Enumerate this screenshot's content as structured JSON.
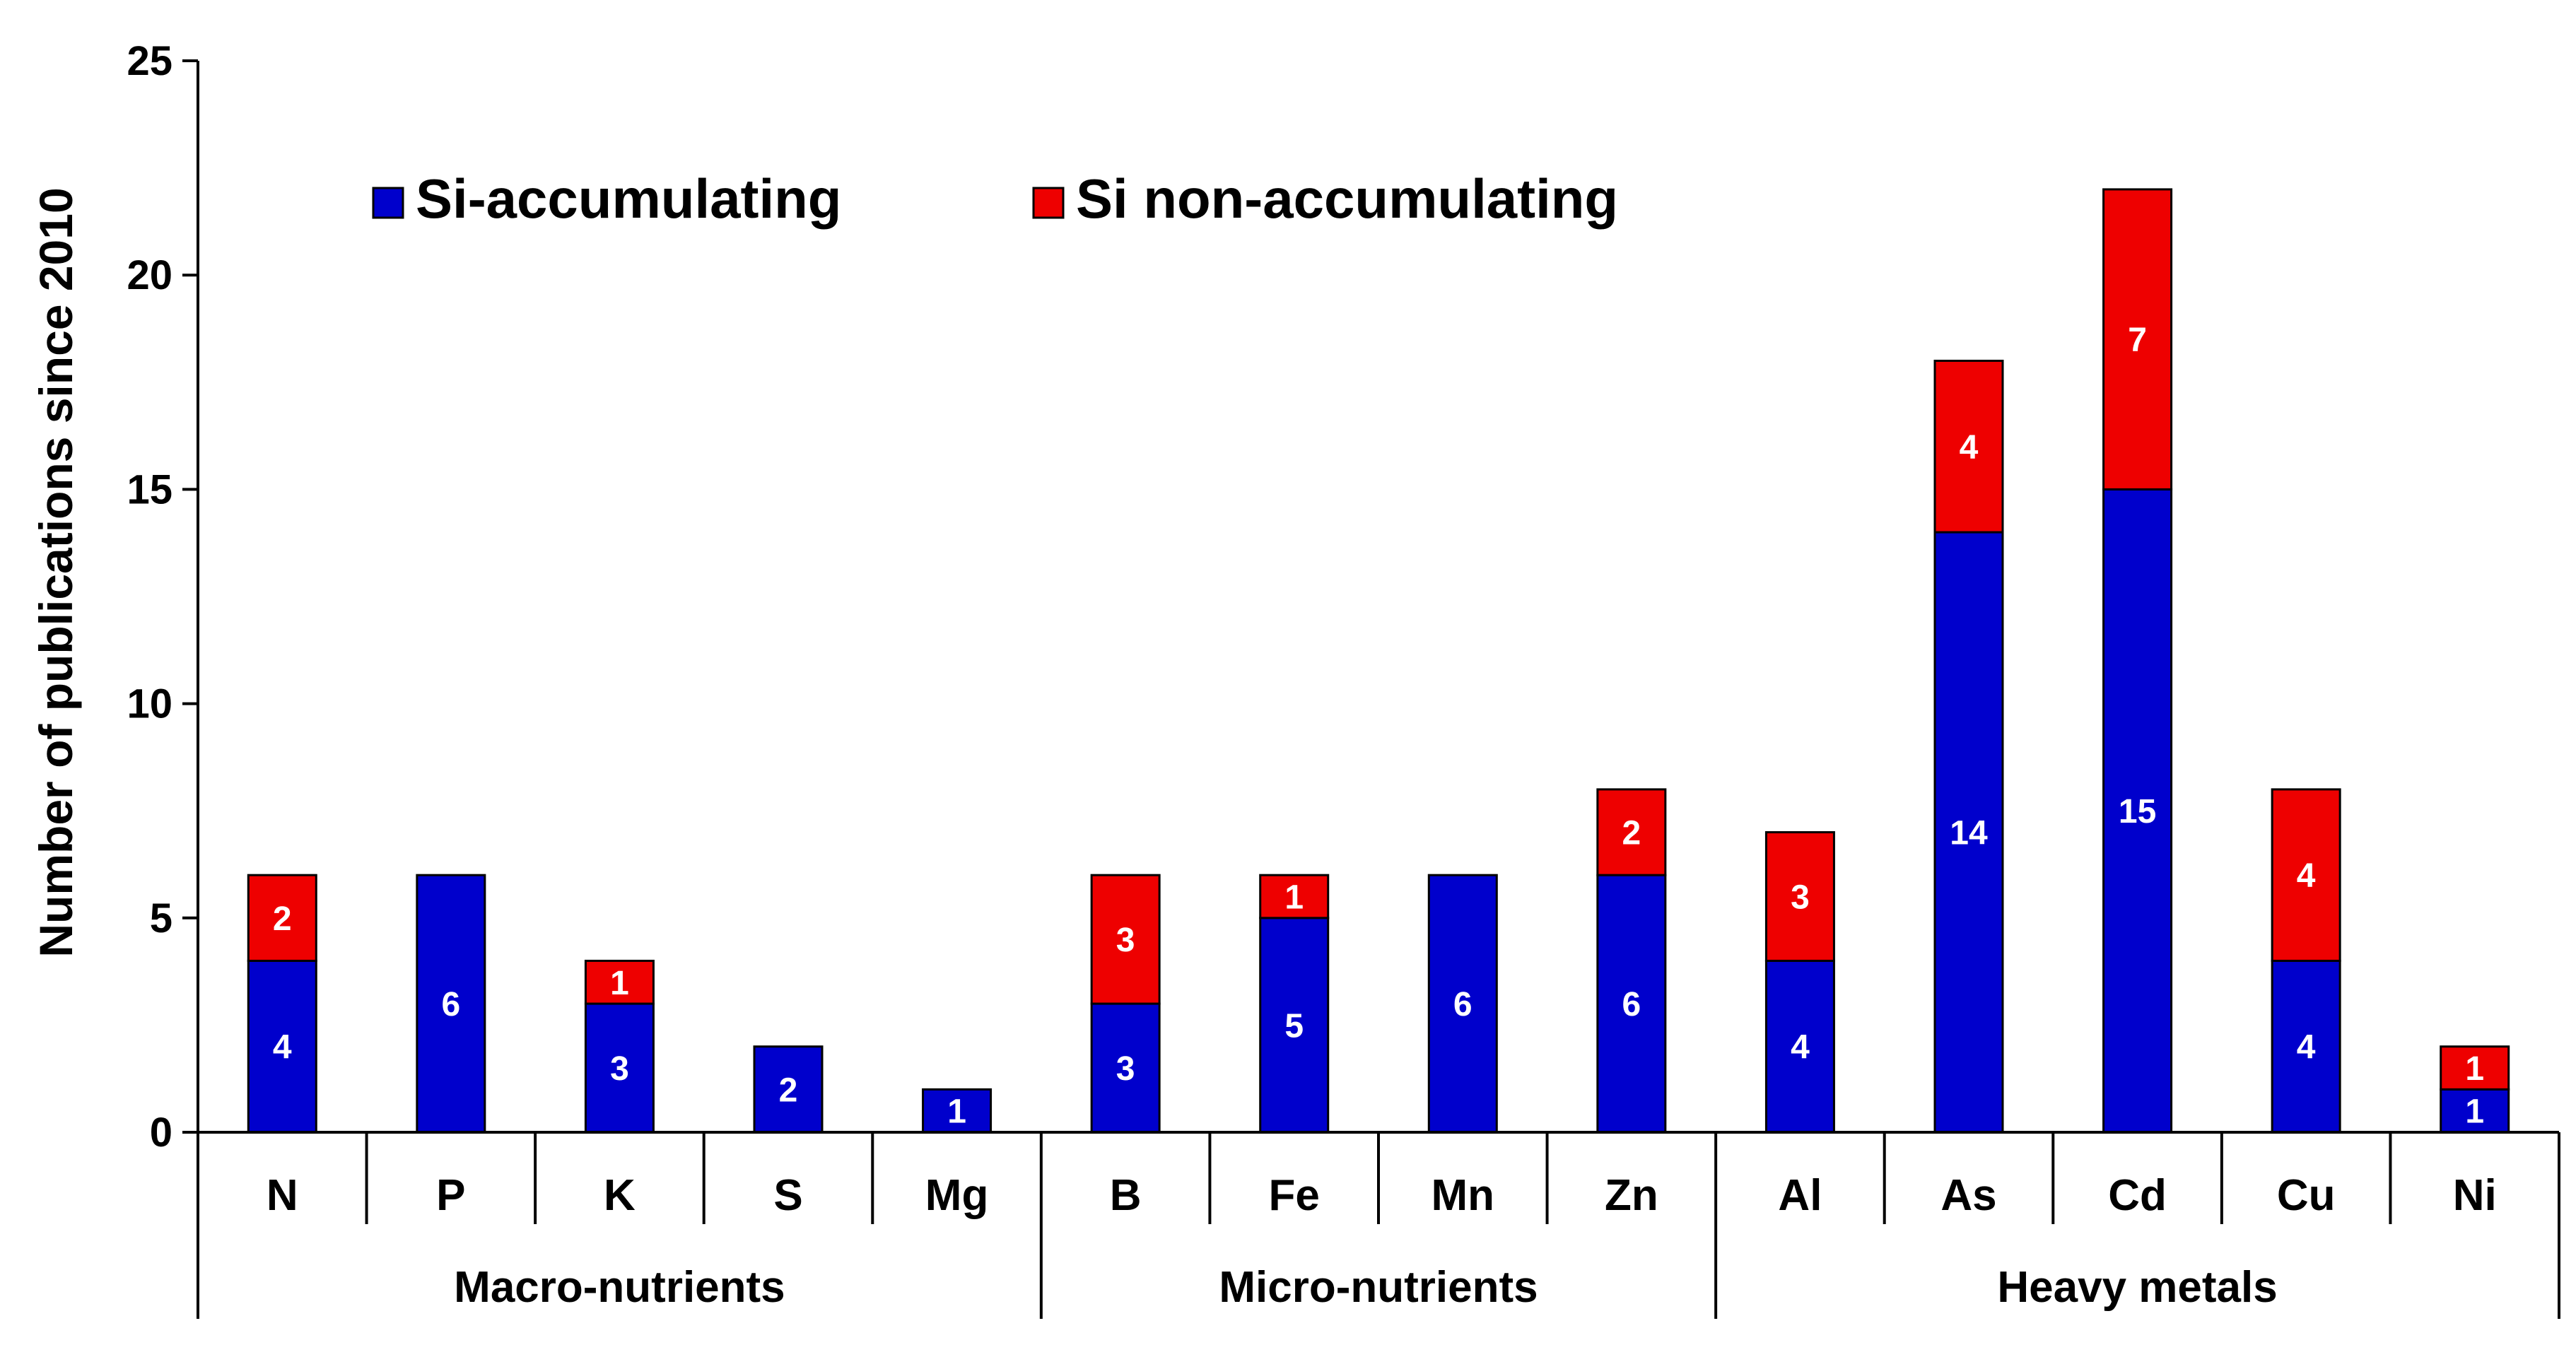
{
  "chart_data": {
    "type": "bar",
    "stacked": true,
    "title": "",
    "xlabel": "",
    "ylabel": "Number of publications since 2010",
    "ylim": [
      0,
      25
    ],
    "yticks": [
      0,
      5,
      10,
      15,
      20,
      25
    ],
    "categories": [
      "N",
      "P",
      "K",
      "S",
      "Mg",
      "B",
      "Fe",
      "Mn",
      "Zn",
      "Al",
      "As",
      "Cd",
      "Cu",
      "Ni"
    ],
    "groups": [
      {
        "label": "Macro-nutrients",
        "categories": [
          "N",
          "P",
          "K",
          "S",
          "Mg"
        ]
      },
      {
        "label": "Micro-nutrients",
        "categories": [
          "B",
          "Fe",
          "Mn",
          "Zn"
        ]
      },
      {
        "label": "Heavy metals",
        "categories": [
          "Al",
          "As",
          "Cd",
          "Cu",
          "Ni"
        ]
      }
    ],
    "series": [
      {
        "name": "Si-accumulating",
        "color": "#0000CC",
        "values": [
          4,
          6,
          3,
          2,
          1,
          3,
          5,
          6,
          6,
          4,
          14,
          15,
          4,
          1
        ]
      },
      {
        "name": "Si non-accumulating",
        "color": "#EE0000",
        "values": [
          2,
          0,
          1,
          0,
          0,
          3,
          1,
          0,
          2,
          3,
          4,
          7,
          4,
          1
        ]
      }
    ],
    "legend": {
      "position": "top-left",
      "orientation": "horizontal"
    },
    "grid": false
  }
}
